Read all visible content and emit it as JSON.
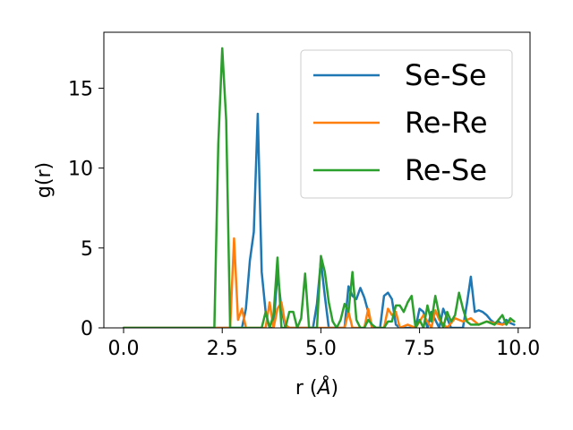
{
  "chart_data": {
    "type": "line",
    "title": "",
    "xlabel": "r (",
    "xlabel_unit": "Å",
    "xlabel_close": ")",
    "ylabel": "g(r)",
    "xlim": [
      -0.5,
      10.3
    ],
    "ylim": [
      0,
      18.5
    ],
    "xticks": [
      0.0,
      2.5,
      5.0,
      7.5,
      10.0
    ],
    "xtick_labels": [
      "0.0",
      "2.5",
      "5.0",
      "7.5",
      "10.0"
    ],
    "yticks": [
      0,
      5,
      10,
      15
    ],
    "ytick_labels": [
      "0",
      "5",
      "10",
      "15"
    ],
    "grid": false,
    "legend_position": "top-right",
    "series": [
      {
        "name": "Se-Se",
        "color": "#1f77b4",
        "x": [
          0.0,
          3.0,
          3.1,
          3.2,
          3.3,
          3.4,
          3.5,
          3.6,
          3.7,
          3.8,
          3.9,
          4.0,
          4.1,
          4.2,
          4.4,
          4.6,
          4.8,
          4.9,
          5.0,
          5.1,
          5.2,
          5.4,
          5.6,
          5.7,
          5.8,
          5.9,
          6.0,
          6.1,
          6.2,
          6.3,
          6.4,
          6.5,
          6.6,
          6.7,
          6.8,
          6.9,
          7.0,
          7.2,
          7.4,
          7.5,
          7.6,
          7.7,
          7.8,
          7.9,
          8.0,
          8.1,
          8.2,
          8.3,
          8.4,
          8.5,
          8.6,
          8.7,
          8.8,
          8.9,
          9.0,
          9.1,
          9.2,
          9.3,
          9.4,
          9.5,
          9.6,
          9.7,
          9.8,
          9.9
        ],
        "y": [
          0.0,
          0.0,
          1.2,
          4.2,
          6.0,
          13.4,
          3.5,
          1.0,
          0.0,
          0.0,
          3.5,
          1.2,
          0.0,
          0.0,
          0.0,
          0.0,
          0.0,
          1.5,
          4.2,
          2.0,
          0.0,
          0.0,
          0.0,
          2.6,
          2.0,
          1.8,
          2.5,
          1.9,
          1.0,
          0.0,
          0.0,
          0.0,
          2.0,
          2.2,
          1.8,
          0.2,
          0.0,
          0.0,
          0.0,
          1.2,
          1.0,
          0.0,
          1.0,
          0.5,
          0.0,
          1.2,
          0.6,
          0.0,
          0.0,
          0.0,
          0.0,
          1.5,
          3.2,
          1.0,
          1.1,
          1.0,
          0.8,
          0.5,
          0.3,
          0.4,
          0.2,
          0.5,
          0.3,
          0.2
        ]
      },
      {
        "name": "Re-Re",
        "color": "#ff7f0e",
        "x": [
          0.0,
          2.6,
          2.7,
          2.8,
          2.9,
          3.0,
          3.1,
          3.2,
          3.4,
          3.6,
          3.7,
          3.8,
          3.9,
          4.0,
          4.1,
          4.2,
          4.4,
          4.6,
          4.8,
          5.0,
          5.2,
          5.4,
          5.6,
          5.7,
          5.8,
          5.9,
          6.0,
          6.1,
          6.2,
          6.3,
          6.4,
          6.6,
          6.7,
          6.8,
          6.9,
          7.0,
          7.2,
          7.4,
          7.6,
          7.8,
          7.9,
          8.0,
          8.2,
          8.4,
          8.6,
          8.8,
          9.0,
          9.2,
          9.4,
          9.6,
          9.8
        ],
        "y": [
          0.0,
          0.0,
          0.0,
          5.6,
          0.5,
          1.2,
          0.0,
          0.0,
          0.0,
          0.0,
          1.6,
          0.0,
          1.2,
          1.6,
          0.2,
          0.0,
          0.0,
          0.0,
          0.0,
          0.0,
          0.0,
          0.0,
          0.0,
          1.0,
          0.0,
          0.0,
          0.0,
          0.0,
          1.2,
          0.0,
          0.0,
          0.0,
          1.2,
          0.8,
          1.0,
          0.0,
          0.2,
          0.0,
          0.8,
          0.0,
          1.1,
          0.5,
          0.0,
          0.6,
          0.4,
          0.6,
          0.2,
          0.4,
          0.3,
          0.2,
          0.4
        ]
      },
      {
        "name": "Re-Se",
        "color": "#2ca02c",
        "x": [
          0.0,
          2.3,
          2.4,
          2.5,
          2.6,
          2.7,
          2.8,
          3.5,
          3.6,
          3.7,
          3.8,
          3.9,
          4.0,
          4.1,
          4.2,
          4.3,
          4.4,
          4.5,
          4.6,
          4.7,
          4.8,
          4.9,
          5.0,
          5.1,
          5.2,
          5.3,
          5.4,
          5.5,
          5.6,
          5.7,
          5.8,
          5.9,
          6.0,
          6.1,
          6.2,
          6.3,
          6.4,
          6.5,
          6.6,
          6.7,
          6.8,
          6.9,
          7.0,
          7.1,
          7.2,
          7.3,
          7.4,
          7.5,
          7.6,
          7.7,
          7.8,
          7.9,
          8.0,
          8.1,
          8.2,
          8.3,
          8.4,
          8.5,
          8.6,
          8.7,
          8.8,
          8.9,
          9.0,
          9.2,
          9.4,
          9.6,
          9.7,
          9.8,
          9.9
        ],
        "y": [
          0.0,
          0.0,
          11.5,
          17.5,
          13.0,
          0.0,
          0.0,
          0.0,
          1.0,
          0.0,
          0.8,
          4.4,
          0.0,
          0.0,
          1.0,
          1.0,
          0.0,
          0.6,
          3.4,
          0.0,
          0.0,
          0.0,
          4.5,
          3.5,
          1.6,
          0.4,
          0.0,
          0.5,
          1.5,
          1.0,
          3.5,
          0.5,
          0.0,
          0.0,
          0.5,
          0.2,
          0.0,
          0.0,
          0.0,
          0.4,
          0.4,
          1.4,
          1.4,
          1.0,
          1.6,
          2.0,
          0.0,
          0.5,
          0.0,
          1.4,
          0.4,
          2.0,
          0.8,
          0.0,
          1.0,
          0.4,
          0.8,
          2.2,
          1.2,
          0.4,
          0.2,
          0.2,
          0.2,
          0.4,
          0.2,
          0.8,
          0.2,
          0.6,
          0.4
        ]
      }
    ]
  }
}
